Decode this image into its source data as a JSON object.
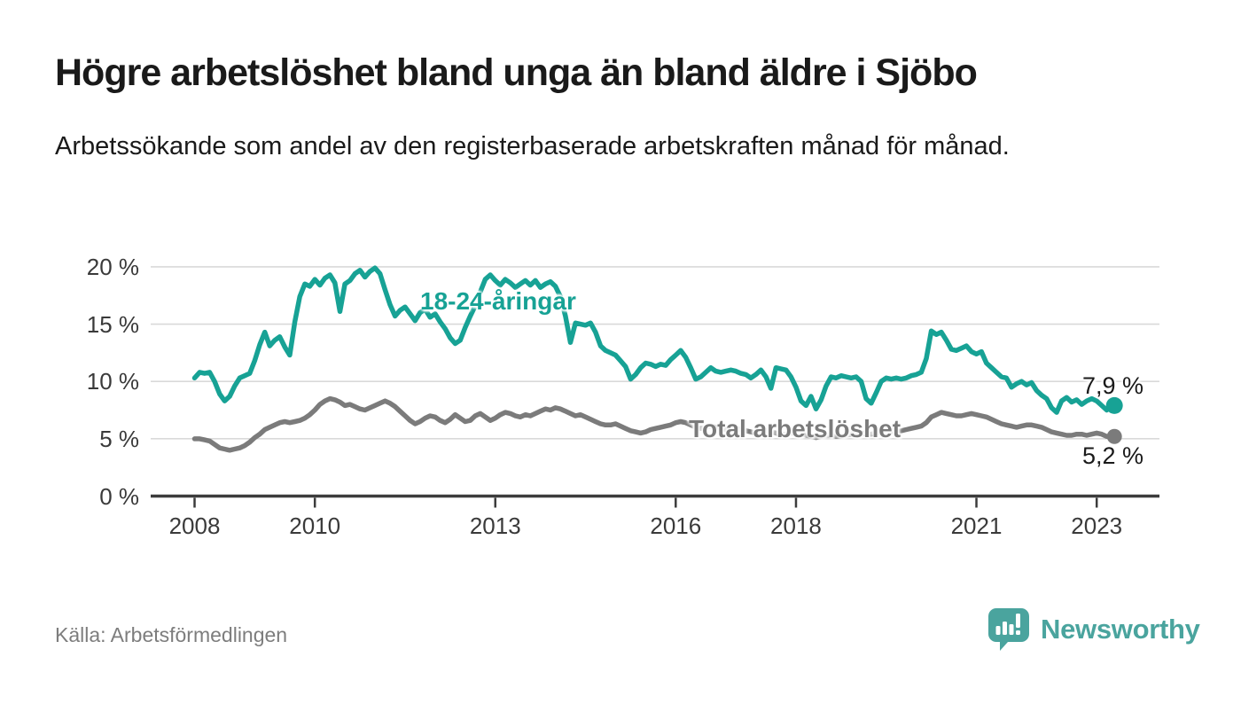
{
  "header": {
    "title": "Högre arbetslöshet bland unga än bland äldre i Sjöbo",
    "subtitle": "Arbetssökande som andel av den registerbaserade arbetskraften månad för månad."
  },
  "footer": {
    "source": "Källa: Arbetsförmedlingen",
    "brand": "Newsworthy",
    "brand_icon": "newsworthy-speech-bubble-bar-chart-icon"
  },
  "colors": {
    "young_series": "#17a295",
    "total_series": "#7b7b7b",
    "gridline": "#d9d9d9",
    "axis": "#3c3c3c",
    "tick_text": "#3a3a3a",
    "text": "#1a1a1a",
    "source_text": "#7d7d7d",
    "brand_teal": "#4aa49e",
    "background": "#ffffff"
  },
  "chart_data": {
    "type": "line",
    "x_unit": "month",
    "x_start": "2008-01",
    "x_end": "2023-04",
    "grid": "horizontal",
    "legend_position": "inline-annotations",
    "ylim": [
      0,
      21
    ],
    "x_ticks": [
      {
        "m": 0,
        "label": "2008"
      },
      {
        "m": 24,
        "label": "2010"
      },
      {
        "m": 60,
        "label": "2013"
      },
      {
        "m": 96,
        "label": "2016"
      },
      {
        "m": 120,
        "label": "2018"
      },
      {
        "m": 156,
        "label": "2021"
      },
      {
        "m": 180,
        "label": "2023"
      }
    ],
    "y_ticks": [
      {
        "v": 0,
        "label": "0 %"
      },
      {
        "v": 5,
        "label": "5 %"
      },
      {
        "v": 10,
        "label": "10 %"
      },
      {
        "v": 15,
        "label": "15 %"
      },
      {
        "v": 20,
        "label": "20 %"
      }
    ],
    "series": [
      {
        "name": "18-24-åringar",
        "color": "#17a295",
        "end_label": "7,9 %",
        "end_value": 7.9,
        "values": [
          10.3,
          10.8,
          10.7,
          10.8,
          10.0,
          8.9,
          8.3,
          8.7,
          9.6,
          10.3,
          10.5,
          10.7,
          11.8,
          13.2,
          14.3,
          13.1,
          13.6,
          13.9,
          13.0,
          12.3,
          15.2,
          17.4,
          18.5,
          18.3,
          18.9,
          18.4,
          19.0,
          19.3,
          18.6,
          16.1,
          18.5,
          18.8,
          19.4,
          19.7,
          19.1,
          19.6,
          19.9,
          19.4,
          18.0,
          16.7,
          15.7,
          16.2,
          16.5,
          15.9,
          15.3,
          16.0,
          16.3,
          15.6,
          15.9,
          15.2,
          14.6,
          13.8,
          13.3,
          13.6,
          14.7,
          15.7,
          16.6,
          17.8,
          18.9,
          19.3,
          18.8,
          18.4,
          18.9,
          18.6,
          18.2,
          18.5,
          18.8,
          18.4,
          18.8,
          18.2,
          18.5,
          18.7,
          18.3,
          17.4,
          15.7,
          13.4,
          15.1,
          15.0,
          14.9,
          15.1,
          14.3,
          13.1,
          12.7,
          12.5,
          12.3,
          11.8,
          11.3,
          10.2,
          10.6,
          11.2,
          11.6,
          11.5,
          11.3,
          11.5,
          11.4,
          11.9,
          12.3,
          12.7,
          12.1,
          11.2,
          10.2,
          10.4,
          10.8,
          11.2,
          10.9,
          10.8,
          10.9,
          11.0,
          10.9,
          10.7,
          10.6,
          10.3,
          10.6,
          11.0,
          10.4,
          9.4,
          11.2,
          11.1,
          11.0,
          10.4,
          9.5,
          8.3,
          7.9,
          8.7,
          7.6,
          8.4,
          9.6,
          10.4,
          10.3,
          10.5,
          10.4,
          10.3,
          10.4,
          10.0,
          8.5,
          8.1,
          9.0,
          10.0,
          10.3,
          10.2,
          10.3,
          10.2,
          10.3,
          10.5,
          10.6,
          10.8,
          12.0,
          14.4,
          14.1,
          14.3,
          13.6,
          12.8,
          12.7,
          12.9,
          13.1,
          12.6,
          12.4,
          12.6,
          11.6,
          11.2,
          10.8,
          10.4,
          10.3,
          9.5,
          9.8,
          10.0,
          9.7,
          9.9,
          9.2,
          8.8,
          8.5,
          7.7,
          7.3,
          8.3,
          8.6,
          8.2,
          8.4,
          8.0,
          8.3,
          8.5,
          8.3,
          7.9,
          7.5,
          7.9
        ]
      },
      {
        "name": "Total arbetslöshet",
        "color": "#7b7b7b",
        "end_label": "5,2 %",
        "end_value": 5.2,
        "values": [
          5.0,
          5.0,
          4.9,
          4.8,
          4.5,
          4.2,
          4.1,
          4.0,
          4.1,
          4.2,
          4.4,
          4.7,
          5.1,
          5.4,
          5.8,
          6.0,
          6.2,
          6.4,
          6.5,
          6.4,
          6.5,
          6.6,
          6.8,
          7.1,
          7.5,
          8.0,
          8.3,
          8.5,
          8.4,
          8.2,
          7.9,
          8.0,
          7.8,
          7.6,
          7.5,
          7.7,
          7.9,
          8.1,
          8.3,
          8.1,
          7.8,
          7.4,
          7.0,
          6.6,
          6.3,
          6.5,
          6.8,
          7.0,
          6.9,
          6.6,
          6.4,
          6.7,
          7.1,
          6.8,
          6.5,
          6.6,
          7.0,
          7.2,
          6.9,
          6.6,
          6.8,
          7.1,
          7.3,
          7.2,
          7.0,
          6.9,
          7.1,
          7.0,
          7.2,
          7.4,
          7.6,
          7.5,
          7.7,
          7.6,
          7.4,
          7.2,
          7.0,
          7.1,
          6.9,
          6.7,
          6.5,
          6.3,
          6.2,
          6.2,
          6.3,
          6.1,
          5.9,
          5.7,
          5.6,
          5.5,
          5.6,
          5.8,
          5.9,
          6.0,
          6.1,
          6.2,
          6.4,
          6.5,
          6.4,
          6.2,
          6.0,
          5.9,
          6.0,
          6.1,
          6.0,
          5.9,
          5.8,
          5.8,
          5.9,
          5.8,
          5.7,
          5.6,
          5.5,
          5.6,
          5.7,
          5.6,
          5.5,
          5.4,
          5.4,
          5.5,
          5.5,
          5.4,
          5.3,
          5.2,
          5.1,
          5.2,
          5.3,
          5.3,
          5.2,
          5.2,
          5.3,
          5.4,
          5.5,
          5.5,
          5.4,
          5.4,
          5.5,
          5.6,
          5.7,
          5.7,
          5.6,
          5.7,
          5.8,
          5.9,
          6.0,
          6.1,
          6.4,
          6.9,
          7.1,
          7.3,
          7.2,
          7.1,
          7.0,
          7.0,
          7.1,
          7.2,
          7.1,
          7.0,
          6.9,
          6.7,
          6.5,
          6.3,
          6.2,
          6.1,
          6.0,
          6.1,
          6.2,
          6.2,
          6.1,
          6.0,
          5.8,
          5.6,
          5.5,
          5.4,
          5.3,
          5.3,
          5.4,
          5.4,
          5.3,
          5.4,
          5.5,
          5.4,
          5.2,
          5.2
        ]
      }
    ]
  }
}
